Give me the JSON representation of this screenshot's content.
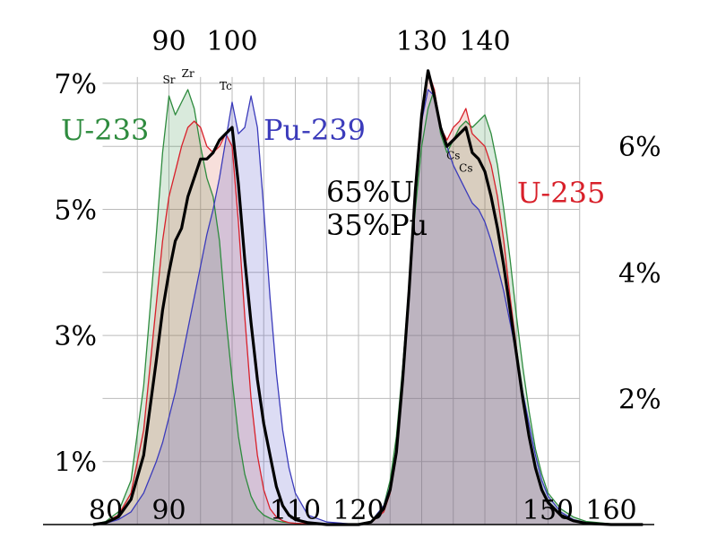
{
  "chart_data": {
    "type": "area",
    "title": "",
    "xlabel": "",
    "ylabel": "",
    "xlim": [
      78,
      165
    ],
    "ylim": [
      0,
      7.3
    ],
    "x_ticks_top": [
      "90",
      "100",
      "130",
      "140"
    ],
    "x_ticks_top_values": [
      90,
      100,
      130,
      140
    ],
    "x_ticks_bottom": [
      "80",
      "90",
      "110",
      "120",
      "150",
      "160"
    ],
    "x_ticks_bottom_values": [
      80,
      90,
      110,
      120,
      150,
      160
    ],
    "y_ticks_left": [
      "1%",
      "3%",
      "5%",
      "7%"
    ],
    "y_ticks_left_values": [
      1,
      3,
      5,
      7
    ],
    "y_ticks_right": [
      "2%",
      "4%",
      "6%"
    ],
    "y_ticks_right_values": [
      2,
      4,
      6
    ],
    "grid": true,
    "annotations": [
      {
        "text": "Sr",
        "x": 90,
        "y": 7.0
      },
      {
        "text": "Zr",
        "x": 93,
        "y": 7.1
      },
      {
        "text": "Tc",
        "x": 99,
        "y": 6.9
      },
      {
        "text": "Cs",
        "x": 135,
        "y": 5.8
      },
      {
        "text": "Cs",
        "x": 137,
        "y": 5.6
      }
    ],
    "mix_label_lines": [
      "65%U",
      "35%Pu"
    ],
    "series": [
      {
        "name": "U-233",
        "color": "#2e8b3e",
        "fill": "rgba(46,139,62,0.18)",
        "label": "U-233",
        "x": [
          78,
          80,
          82,
          84,
          86,
          88,
          89,
          90,
          91,
          92,
          93,
          94,
          95,
          96,
          97,
          98,
          99,
          100,
          101,
          102,
          103,
          104,
          105,
          106,
          107,
          108,
          109,
          110,
          112,
          115,
          120,
          122,
          124,
          125,
          126,
          127,
          128,
          129,
          130,
          131,
          132,
          133,
          134,
          135,
          136,
          137,
          138,
          139,
          140,
          141,
          142,
          143,
          144,
          145,
          146,
          147,
          148,
          149,
          150,
          152,
          154,
          156,
          160,
          165
        ],
        "y": [
          0,
          0.05,
          0.2,
          0.7,
          2.2,
          4.6,
          5.9,
          6.8,
          6.5,
          6.7,
          6.9,
          6.6,
          6.0,
          5.5,
          5.2,
          4.5,
          3.3,
          2.3,
          1.4,
          0.8,
          0.45,
          0.25,
          0.15,
          0.1,
          0.06,
          0.04,
          0.03,
          0.02,
          0.01,
          0,
          0,
          0.05,
          0.3,
          0.7,
          1.4,
          2.5,
          3.8,
          5.0,
          6.0,
          6.6,
          6.9,
          6.2,
          5.9,
          6.1,
          6.3,
          6.4,
          6.3,
          6.4,
          6.5,
          6.2,
          5.7,
          5.0,
          4.2,
          3.3,
          2.5,
          1.8,
          1.2,
          0.8,
          0.5,
          0.25,
          0.12,
          0.05,
          0.01,
          0
        ]
      },
      {
        "name": "U-235",
        "color": "#d8202a",
        "fill": "rgba(220,110,90,0.22)",
        "label": "U-235",
        "x": [
          78,
          80,
          82,
          84,
          86,
          88,
          89,
          90,
          91,
          92,
          93,
          94,
          95,
          96,
          97,
          98,
          99,
          100,
          101,
          102,
          103,
          104,
          105,
          106,
          107,
          108,
          109,
          110,
          112,
          115,
          120,
          122,
          124,
          125,
          126,
          127,
          128,
          129,
          130,
          131,
          132,
          133,
          134,
          135,
          136,
          137,
          138,
          139,
          140,
          141,
          142,
          143,
          144,
          145,
          146,
          147,
          148,
          149,
          150,
          152,
          154,
          156,
          160,
          165
        ],
        "y": [
          0,
          0.04,
          0.15,
          0.5,
          1.5,
          3.5,
          4.5,
          5.2,
          5.6,
          6.0,
          6.3,
          6.4,
          6.3,
          6.0,
          5.9,
          6.0,
          6.2,
          6.0,
          4.8,
          3.3,
          2.0,
          1.1,
          0.55,
          0.25,
          0.12,
          0.06,
          0.03,
          0.02,
          0.01,
          0,
          0,
          0.03,
          0.2,
          0.5,
          1.1,
          2.2,
          3.6,
          5.3,
          6.6,
          7.2,
          6.9,
          6.3,
          6.1,
          6.3,
          6.4,
          6.6,
          6.2,
          6.1,
          6.0,
          5.7,
          5.2,
          4.5,
          3.6,
          2.8,
          2.0,
          1.4,
          0.9,
          0.55,
          0.35,
          0.15,
          0.06,
          0.02,
          0,
          0
        ]
      },
      {
        "name": "Pu-239",
        "color": "#3b3bbb",
        "fill": "rgba(80,80,200,0.2)",
        "label": "Pu-239",
        "x": [
          78,
          80,
          82,
          84,
          86,
          88,
          89,
          90,
          91,
          92,
          93,
          94,
          95,
          96,
          97,
          98,
          99,
          100,
          101,
          102,
          103,
          104,
          105,
          106,
          107,
          108,
          109,
          110,
          112,
          115,
          120,
          122,
          124,
          125,
          126,
          127,
          128,
          129,
          130,
          131,
          132,
          133,
          134,
          135,
          136,
          137,
          138,
          139,
          140,
          141,
          142,
          143,
          144,
          145,
          146,
          147,
          148,
          149,
          150,
          152,
          154,
          156,
          160,
          165
        ],
        "y": [
          0,
          0.02,
          0.08,
          0.2,
          0.5,
          1.0,
          1.3,
          1.7,
          2.1,
          2.6,
          3.1,
          3.6,
          4.1,
          4.6,
          5.0,
          5.5,
          6.1,
          6.7,
          6.2,
          6.3,
          6.8,
          6.3,
          5.0,
          3.6,
          2.4,
          1.5,
          0.9,
          0.5,
          0.15,
          0.04,
          0,
          0.05,
          0.3,
          0.6,
          1.2,
          2.3,
          3.7,
          5.3,
          6.4,
          6.9,
          6.8,
          6.3,
          6.0,
          5.7,
          5.5,
          5.3,
          5.1,
          5.0,
          4.8,
          4.5,
          4.1,
          3.7,
          3.2,
          2.7,
          2.1,
          1.6,
          1.1,
          0.7,
          0.45,
          0.2,
          0.08,
          0.03,
          0,
          0
        ]
      },
      {
        "name": "mix",
        "color": "#000000",
        "fill": "none",
        "label": "",
        "x": [
          78,
          80,
          82,
          84,
          86,
          88,
          89,
          90,
          91,
          92,
          93,
          94,
          95,
          96,
          97,
          98,
          99,
          100,
          101,
          102,
          103,
          104,
          105,
          106,
          107,
          108,
          109,
          110,
          112,
          115,
          120,
          122,
          124,
          125,
          126,
          127,
          128,
          129,
          130,
          131,
          132,
          133,
          134,
          135,
          136,
          137,
          138,
          139,
          140,
          141,
          142,
          143,
          144,
          145,
          146,
          147,
          148,
          149,
          150,
          152,
          154,
          156,
          160,
          165
        ],
        "y": [
          0,
          0.03,
          0.12,
          0.4,
          1.1,
          2.6,
          3.4,
          4.0,
          4.5,
          4.7,
          5.2,
          5.5,
          5.8,
          5.8,
          5.9,
          6.1,
          6.2,
          6.3,
          5.4,
          4.2,
          3.2,
          2.3,
          1.6,
          1.1,
          0.6,
          0.3,
          0.15,
          0.08,
          0.03,
          0,
          0,
          0.04,
          0.25,
          0.55,
          1.15,
          2.3,
          3.7,
          5.3,
          6.5,
          7.2,
          6.8,
          6.3,
          6.0,
          6.1,
          6.2,
          6.3,
          5.9,
          5.8,
          5.6,
          5.2,
          4.7,
          4.1,
          3.4,
          2.7,
          2.0,
          1.4,
          0.9,
          0.55,
          0.35,
          0.15,
          0.06,
          0.02,
          0,
          0
        ]
      }
    ]
  }
}
